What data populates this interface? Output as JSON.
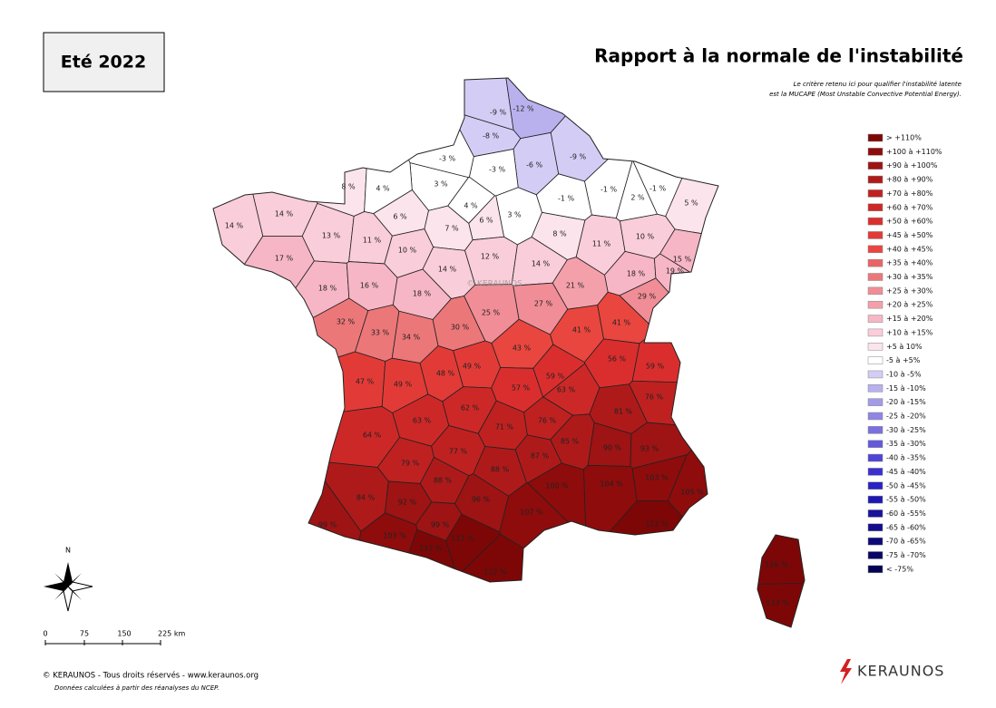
{
  "header": {
    "season": "Eté 2022",
    "title": "Rapport à la normale de l'instabilité",
    "subtitle": [
      "Le critère retenu ici pour qualifier l'instabilité latente",
      "est la MUCAPE (Most Unstable Convective Potential Energy)."
    ]
  },
  "legend": [
    {
      "label": "> +110%",
      "color": "#7d0707"
    },
    {
      "label": "+100 à +110%",
      "color": "#8e0c0c"
    },
    {
      "label": "+90 à +100%",
      "color": "#9e1313"
    },
    {
      "label": "+80 à +90%",
      "color": "#ae1a1a"
    },
    {
      "label": "+70 à +80%",
      "color": "#bf2121"
    },
    {
      "label": "+60 à +70%",
      "color": "#cd2828"
    },
    {
      "label": "+50 à +60%",
      "color": "#da2e2e"
    },
    {
      "label": "+45 à +50%",
      "color": "#e23b37"
    },
    {
      "label": "+40 à +45%",
      "color": "#e9463f"
    },
    {
      "label": "+35 à +40%",
      "color": "#ea6466"
    },
    {
      "label": "+30 à +35%",
      "color": "#ec7779"
    },
    {
      "label": "+25 à +30%",
      "color": "#f08d96"
    },
    {
      "label": "+20 à +25%",
      "color": "#f4a0ab"
    },
    {
      "label": "+15 à +20%",
      "color": "#f6b6c5"
    },
    {
      "label": "+10 à +15%",
      "color": "#f9cdd9"
    },
    {
      "label": "+5 à 10%",
      "color": "#fce4ec"
    },
    {
      "label": "-5 à +5%",
      "color": "#ffffff"
    },
    {
      "label": "-10 à -5%",
      "color": "#d3cdf6"
    },
    {
      "label": "-15 à -10%",
      "color": "#b9b1ee"
    },
    {
      "label": "-20 à -15%",
      "color": "#a39be8"
    },
    {
      "label": "-25 à -20%",
      "color": "#8f86e4"
    },
    {
      "label": "-30 à -25%",
      "color": "#7a70e0"
    },
    {
      "label": "-35 à -30%",
      "color": "#6459dc"
    },
    {
      "label": "-40 à -35%",
      "color": "#4f44d6"
    },
    {
      "label": "-45 à -40%",
      "color": "#3b30cf"
    },
    {
      "label": "-50 à -45%",
      "color": "#2a22c2"
    },
    {
      "label": "-55 à -50%",
      "color": "#1f18b0"
    },
    {
      "label": "-60 à -55%",
      "color": "#18129d"
    },
    {
      "label": "-65 à -60%",
      "color": "#120d8a"
    },
    {
      "label": "-70 à -65%",
      "color": "#0d0977"
    },
    {
      "label": "-75 à -70%",
      "color": "#090664"
    },
    {
      "label": "< -75%",
      "color": "#060452"
    }
  ],
  "departments": [
    {
      "label": "-9 %",
      "color": "#d3cdf6"
    },
    {
      "label": "-12 %",
      "color": "#b9b1ee"
    },
    {
      "label": "-8 %",
      "color": "#d3cdf6"
    },
    {
      "label": "-9 %",
      "color": "#d3cdf6"
    },
    {
      "label": "-6 %",
      "color": "#d3cdf6"
    },
    {
      "label": "-3 %",
      "color": "#ffffff"
    },
    {
      "label": "-3 %",
      "color": "#ffffff"
    },
    {
      "label": "3 %",
      "color": "#ffffff"
    },
    {
      "label": "8 %",
      "color": "#fce4ec"
    },
    {
      "label": "4 %",
      "color": "#ffffff"
    },
    {
      "label": "4 %",
      "color": "#ffffff"
    },
    {
      "label": "6 %",
      "color": "#fce4ec"
    },
    {
      "label": "3 %",
      "color": "#ffffff"
    },
    {
      "label": "-1 %",
      "color": "#ffffff"
    },
    {
      "label": "-1 %",
      "color": "#ffffff"
    },
    {
      "label": "2 %",
      "color": "#ffffff"
    },
    {
      "label": "-1 %",
      "color": "#ffffff"
    },
    {
      "label": "5 %",
      "color": "#fce4ec"
    },
    {
      "label": "14 %",
      "color": "#f9cdd9"
    },
    {
      "label": "14 %",
      "color": "#f9cdd9"
    },
    {
      "label": "6 %",
      "color": "#fce4ec"
    },
    {
      "label": "7 %",
      "color": "#fce4ec"
    },
    {
      "label": "13 %",
      "color": "#f9cdd9"
    },
    {
      "label": "11 %",
      "color": "#f9cdd9"
    },
    {
      "label": "10 %",
      "color": "#f9cdd9"
    },
    {
      "label": "8 %",
      "color": "#fce4ec"
    },
    {
      "label": "11 %",
      "color": "#f9cdd9"
    },
    {
      "label": "10 %",
      "color": "#f9cdd9"
    },
    {
      "label": "12 %",
      "color": "#f9cdd9"
    },
    {
      "label": "17 %",
      "color": "#f6b6c5"
    },
    {
      "label": "14 %",
      "color": "#f9cdd9"
    },
    {
      "label": "14 %",
      "color": "#f9cdd9"
    },
    {
      "label": "15 %",
      "color": "#f6b6c5"
    },
    {
      "label": "18 %",
      "color": "#f6b6c5"
    },
    {
      "label": "19 %",
      "color": "#f6b6c5"
    },
    {
      "label": "18 %",
      "color": "#f6b6c5"
    },
    {
      "label": "16 %",
      "color": "#f6b6c5"
    },
    {
      "label": "18 %",
      "color": "#f6b6c5"
    },
    {
      "label": "21 %",
      "color": "#f4a0ab"
    },
    {
      "label": "29 %",
      "color": "#f08d96"
    },
    {
      "label": "25 %",
      "color": "#f08d96"
    },
    {
      "label": "27 %",
      "color": "#f08d96"
    },
    {
      "label": "32 %",
      "color": "#ec7779"
    },
    {
      "label": "33 %",
      "color": "#ec7779"
    },
    {
      "label": "34 %",
      "color": "#ec7779"
    },
    {
      "label": "30 %",
      "color": "#ec7779"
    },
    {
      "label": "43 %",
      "color": "#e9463f"
    },
    {
      "label": "41 %",
      "color": "#e9463f"
    },
    {
      "label": "41 %",
      "color": "#e9463f"
    },
    {
      "label": "56 %",
      "color": "#da2e2e"
    },
    {
      "label": "59 %",
      "color": "#da2e2e"
    },
    {
      "label": "47 %",
      "color": "#e23b37"
    },
    {
      "label": "49 %",
      "color": "#e23b37"
    },
    {
      "label": "48 %",
      "color": "#e23b37"
    },
    {
      "label": "49 %",
      "color": "#e23b37"
    },
    {
      "label": "57 %",
      "color": "#da2e2e"
    },
    {
      "label": "59 %",
      "color": "#da2e2e"
    },
    {
      "label": "63 %",
      "color": "#cd2828"
    },
    {
      "label": "76 %",
      "color": "#bf2121"
    },
    {
      "label": "81 %",
      "color": "#ae1a1a"
    },
    {
      "label": "62 %",
      "color": "#cd2828"
    },
    {
      "label": "63 %",
      "color": "#cd2828"
    },
    {
      "label": "71 %",
      "color": "#bf2121"
    },
    {
      "label": "76 %",
      "color": "#bf2121"
    },
    {
      "label": "64 %",
      "color": "#cd2828"
    },
    {
      "label": "85 %",
      "color": "#ae1a1a"
    },
    {
      "label": "90 %",
      "color": "#9e1313"
    },
    {
      "label": "93 %",
      "color": "#9e1313"
    },
    {
      "label": "77 %",
      "color": "#bf2121"
    },
    {
      "label": "79 %",
      "color": "#bf2121"
    },
    {
      "label": "87 %",
      "color": "#ae1a1a"
    },
    {
      "label": "103 %",
      "color": "#8e0c0c"
    },
    {
      "label": "88 %",
      "color": "#ae1a1a"
    },
    {
      "label": "88 %",
      "color": "#ae1a1a"
    },
    {
      "label": "104 %",
      "color": "#8e0c0c"
    },
    {
      "label": "100 %",
      "color": "#8e0c0c"
    },
    {
      "label": "105 %",
      "color": "#8e0c0c"
    },
    {
      "label": "84 %",
      "color": "#ae1a1a"
    },
    {
      "label": "92 %",
      "color": "#9e1313"
    },
    {
      "label": "96 %",
      "color": "#9e1313"
    },
    {
      "label": "107 %",
      "color": "#8e0c0c"
    },
    {
      "label": "112 %",
      "color": "#7d0707"
    },
    {
      "label": "99 %",
      "color": "#9e1313"
    },
    {
      "label": "99 %",
      "color": "#9e1313"
    },
    {
      "label": "103 %",
      "color": "#8e0c0c"
    },
    {
      "label": "111 %",
      "color": "#7d0707"
    },
    {
      "label": "112 %",
      "color": "#7d0707"
    },
    {
      "label": "122 %",
      "color": "#7d0707"
    },
    {
      "label": "116 %",
      "color": "#7d0707"
    },
    {
      "label": "113 %",
      "color": "#7d0707"
    }
  ],
  "watermark": "© KERAUNOS",
  "compass": "N",
  "scale_labels": [
    "0",
    "75",
    "150",
    "225 km"
  ],
  "footer": {
    "copyright": "© KERAUNOS - Tous droits réservés - www.keraunos.org",
    "note": "Données calculées à partir des réanalyses du NCEP.",
    "logo": "KERAUNOS"
  }
}
